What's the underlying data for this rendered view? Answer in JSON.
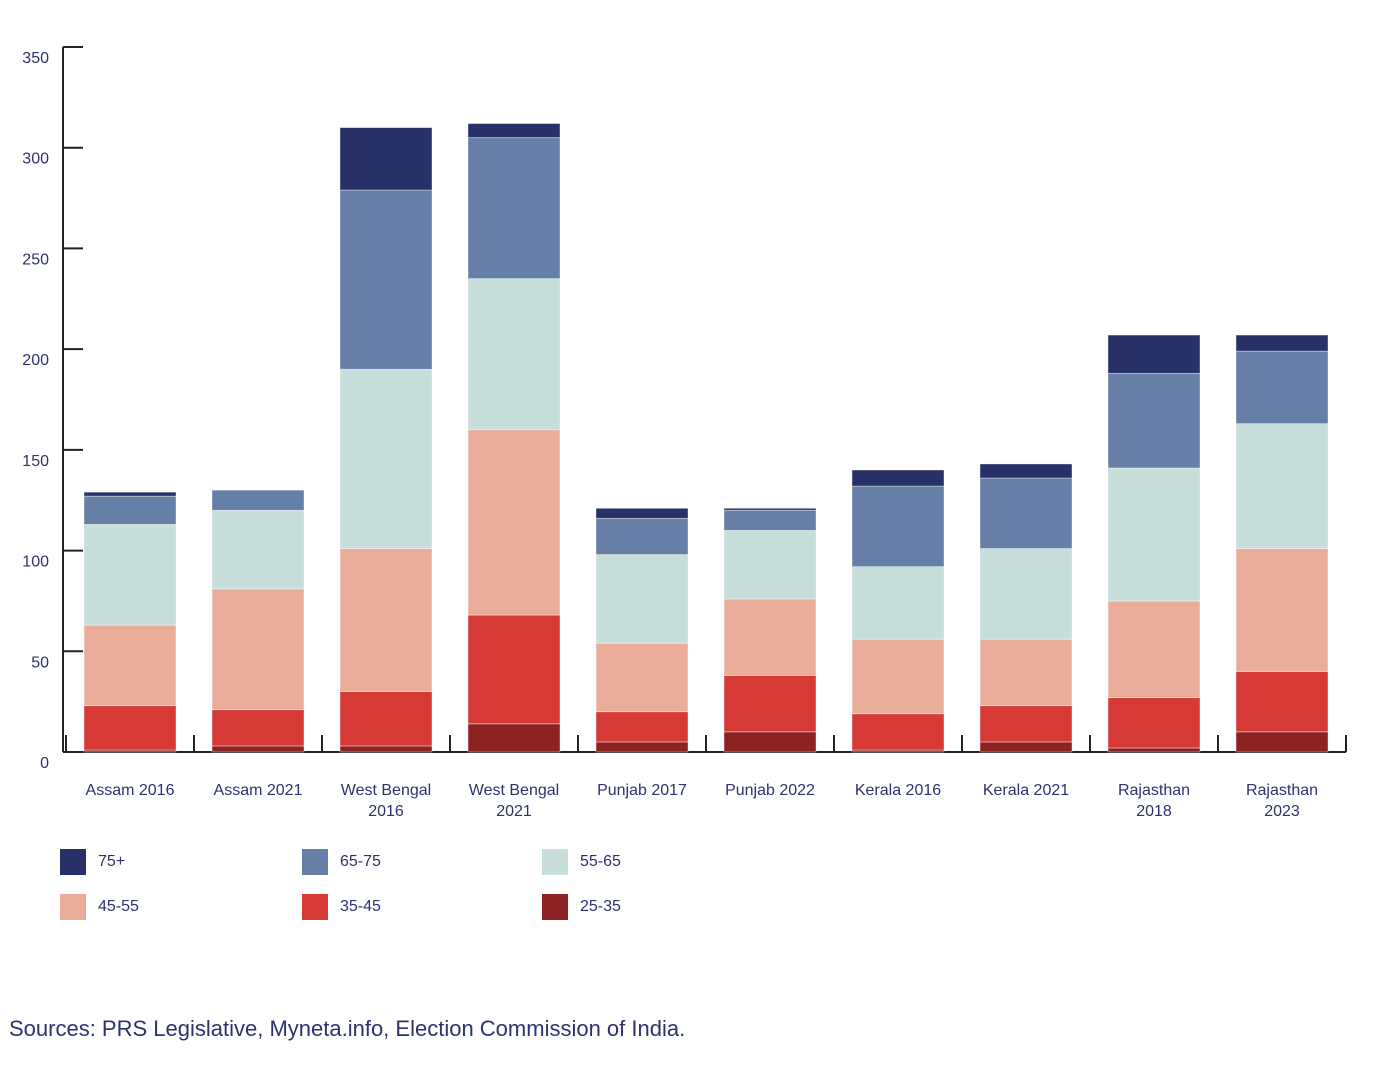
{
  "chart_data": {
    "type": "bar",
    "stacked": true,
    "title": "",
    "xlabel": "",
    "ylabel": "",
    "ylim": [
      0,
      350
    ],
    "yticks": [
      0,
      50,
      100,
      150,
      200,
      250,
      300,
      350
    ],
    "grid": false,
    "legend_position": "bottom-left",
    "categories": [
      "Assam 2016",
      "Assam 2021",
      "West Bengal 2016",
      "West Bengal 2021",
      "Punjab 2017",
      "Punjab 2022",
      "Kerala 2016",
      "Kerala 2021",
      "Rajasthan 2018",
      "Rajasthan 2023"
    ],
    "series": [
      {
        "name": "25-35",
        "color": "#8e2121",
        "values": [
          1,
          3,
          3,
          14,
          5,
          10,
          1,
          5,
          2,
          10
        ]
      },
      {
        "name": "35-45",
        "color": "#d63a35",
        "values": [
          22,
          18,
          27,
          54,
          15,
          28,
          18,
          18,
          25,
          30
        ]
      },
      {
        "name": "45-55",
        "color": "#eaad99",
        "values": [
          40,
          60,
          71,
          92,
          34,
          38,
          37,
          33,
          48,
          61
        ]
      },
      {
        "name": "55-65",
        "color": "#c7dedb",
        "values": [
          50,
          39,
          89,
          75,
          44,
          34,
          36,
          45,
          66,
          62
        ]
      },
      {
        "name": "65-75",
        "color": "#667fa6",
        "values": [
          14,
          10,
          89,
          70,
          18,
          10,
          40,
          35,
          47,
          36
        ]
      },
      {
        "name": "75+",
        "color": "#283068",
        "values": [
          2,
          0,
          31,
          7,
          5,
          1,
          8,
          7,
          19,
          8
        ]
      }
    ],
    "legend_order": [
      "75+",
      "65-75",
      "55-65",
      "45-55",
      "35-45",
      "25-35"
    ]
  },
  "source": "Sources: PRS Legislative, Myneta.info, Election Commission of India."
}
